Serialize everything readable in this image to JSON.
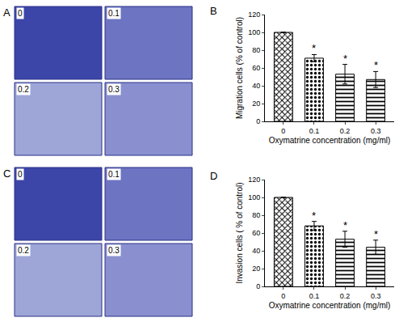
{
  "panels": [
    {
      "label": "A",
      "images": [
        "0",
        "0.1",
        "0.2",
        "0.3"
      ]
    },
    {
      "label": "C",
      "images": [
        "0",
        "0.1",
        "0.2",
        "0.3"
      ]
    }
  ],
  "chart_data": [
    {
      "type": "bar",
      "title": "B",
      "categories": [
        "0",
        "0.1",
        "0.2",
        "0.3"
      ],
      "values": [
        100,
        71,
        53,
        47
      ],
      "error": [
        0,
        4,
        11,
        9
      ],
      "significance": [
        null,
        "*",
        "*",
        "*"
      ],
      "x_label": "Oxymatrine concentration (mg/ml)",
      "y_label": "Migration cells (% of control)",
      "ylim": [
        0,
        120
      ],
      "yticks": [
        0,
        20,
        40,
        60,
        80,
        100,
        120
      ],
      "grid": false
    },
    {
      "type": "bar",
      "title": "D",
      "categories": [
        "0",
        "0.1",
        "0.2",
        "0.3"
      ],
      "values": [
        100,
        68,
        53,
        44
      ],
      "error": [
        0,
        5,
        9,
        8
      ],
      "significance": [
        null,
        "*",
        "*",
        "*"
      ],
      "x_label": "Oxymatrine concentration (mg/ml)",
      "y_label": "Invasion cells ( % of control)",
      "ylim": [
        0,
        120
      ],
      "yticks": [
        0,
        20,
        40,
        60,
        80,
        100,
        120
      ],
      "grid": false
    }
  ]
}
